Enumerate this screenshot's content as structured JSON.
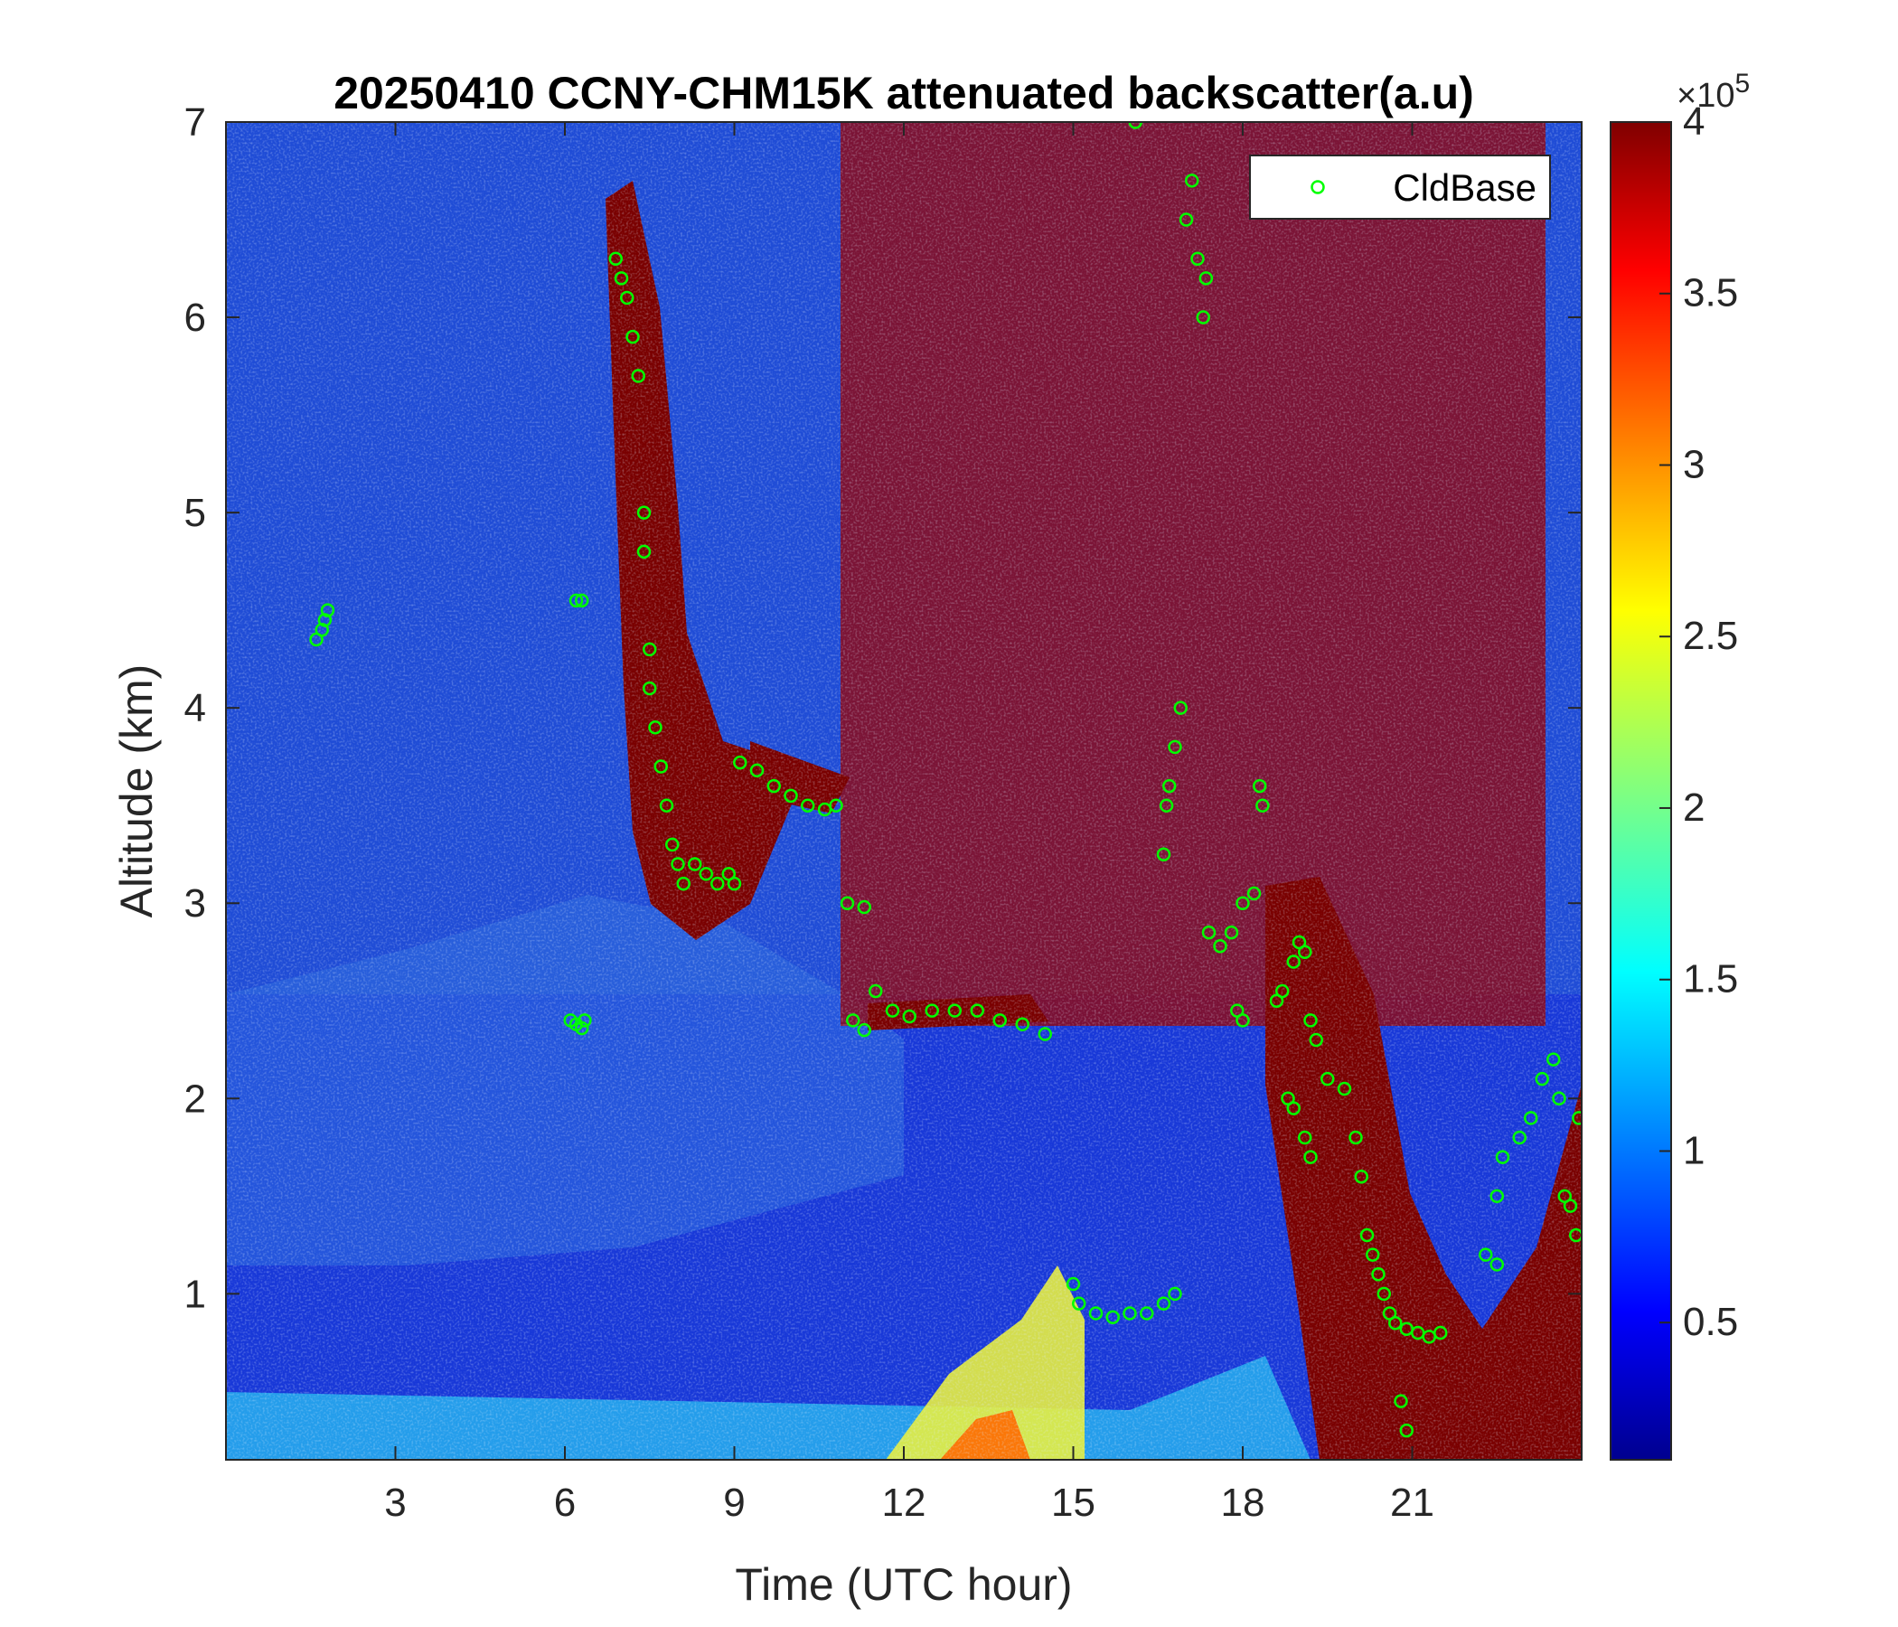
{
  "chart_data": {
    "type": "heatmap",
    "title": "20250410 CCNY-CHM15K attenuated backscatter(a.u)",
    "xlabel": "Time (UTC hour)",
    "ylabel": "Altitude (km)",
    "xlim": [
      0,
      24
    ],
    "ylim": [
      0.15,
      7
    ],
    "x_ticks": [
      3,
      6,
      9,
      12,
      15,
      18,
      21
    ],
    "y_ticks": [
      1,
      2,
      3,
      4,
      5,
      6,
      7
    ],
    "colorbar": {
      "colormap": "jet",
      "range": [
        0.1,
        4
      ],
      "ticks": [
        "0.5",
        "1",
        "1.5",
        "2",
        "2.5",
        "3",
        "3.5",
        "4"
      ],
      "tick_values": [
        0.5,
        1,
        1.5,
        2,
        2.5,
        3,
        3.5,
        4
      ],
      "multiplier_base": "×10",
      "multiplier_exponent": "5"
    },
    "legend": {
      "entries": [
        "CldBase"
      ],
      "placement": "top-right",
      "marker": "circle",
      "marker_color": "#00ff00"
    },
    "series": [
      {
        "name": "CldBase",
        "type": "scatter",
        "points": [
          [
            1.6,
            4.35
          ],
          [
            1.7,
            4.4
          ],
          [
            1.75,
            4.45
          ],
          [
            1.8,
            4.5
          ],
          [
            6.2,
            4.55
          ],
          [
            6.3,
            4.55
          ],
          [
            6.1,
            2.4
          ],
          [
            6.2,
            2.38
          ],
          [
            6.3,
            2.36
          ],
          [
            6.35,
            2.4
          ],
          [
            6.9,
            6.3
          ],
          [
            7.0,
            6.2
          ],
          [
            7.1,
            6.1
          ],
          [
            7.2,
            5.9
          ],
          [
            7.3,
            5.7
          ],
          [
            7.4,
            5.0
          ],
          [
            7.4,
            4.8
          ],
          [
            7.5,
            4.3
          ],
          [
            7.5,
            4.1
          ],
          [
            7.6,
            3.9
          ],
          [
            7.7,
            3.7
          ],
          [
            7.8,
            3.5
          ],
          [
            7.9,
            3.3
          ],
          [
            8.0,
            3.2
          ],
          [
            8.1,
            3.1
          ],
          [
            8.3,
            3.2
          ],
          [
            8.5,
            3.15
          ],
          [
            8.7,
            3.1
          ],
          [
            8.9,
            3.15
          ],
          [
            9.0,
            3.1
          ],
          [
            9.1,
            3.72
          ],
          [
            9.4,
            3.68
          ],
          [
            9.7,
            3.6
          ],
          [
            10.0,
            3.55
          ],
          [
            10.3,
            3.5
          ],
          [
            10.6,
            3.48
          ],
          [
            10.8,
            3.5
          ],
          [
            11.0,
            3.0
          ],
          [
            11.3,
            2.98
          ],
          [
            11.1,
            2.4
          ],
          [
            11.3,
            2.35
          ],
          [
            11.5,
            2.55
          ],
          [
            11.8,
            2.45
          ],
          [
            12.1,
            2.42
          ],
          [
            12.5,
            2.45
          ],
          [
            12.9,
            2.45
          ],
          [
            13.3,
            2.45
          ],
          [
            13.7,
            2.4
          ],
          [
            14.1,
            2.38
          ],
          [
            14.5,
            2.33
          ],
          [
            15.0,
            1.05
          ],
          [
            15.1,
            0.95
          ],
          [
            15.4,
            0.9
          ],
          [
            15.7,
            0.88
          ],
          [
            16.0,
            0.9
          ],
          [
            16.3,
            0.9
          ],
          [
            16.6,
            0.95
          ],
          [
            16.8,
            1.0
          ],
          [
            17.0,
            6.5
          ],
          [
            17.1,
            6.7
          ],
          [
            17.2,
            6.3
          ],
          [
            17.3,
            6.0
          ],
          [
            17.35,
            6.2
          ],
          [
            16.9,
            4.0
          ],
          [
            16.8,
            3.8
          ],
          [
            16.7,
            3.6
          ],
          [
            16.65,
            3.5
          ],
          [
            16.6,
            3.25
          ],
          [
            17.4,
            2.85
          ],
          [
            17.6,
            2.78
          ],
          [
            17.8,
            2.85
          ],
          [
            18.0,
            3.0
          ],
          [
            18.2,
            3.05
          ],
          [
            17.9,
            2.45
          ],
          [
            18.0,
            2.4
          ],
          [
            18.3,
            3.6
          ],
          [
            18.35,
            3.5
          ],
          [
            18.6,
            2.5
          ],
          [
            18.7,
            2.55
          ],
          [
            18.9,
            2.7
          ],
          [
            19.0,
            2.8
          ],
          [
            19.1,
            2.75
          ],
          [
            19.2,
            2.4
          ],
          [
            19.3,
            2.3
          ],
          [
            18.8,
            2.0
          ],
          [
            18.9,
            1.95
          ],
          [
            19.1,
            1.8
          ],
          [
            19.2,
            1.7
          ],
          [
            19.5,
            2.1
          ],
          [
            19.8,
            2.05
          ],
          [
            20.0,
            1.8
          ],
          [
            20.1,
            1.6
          ],
          [
            20.2,
            1.3
          ],
          [
            20.3,
            1.2
          ],
          [
            20.4,
            1.1
          ],
          [
            20.5,
            1.0
          ],
          [
            20.6,
            0.9
          ],
          [
            20.7,
            0.85
          ],
          [
            20.9,
            0.82
          ],
          [
            21.1,
            0.8
          ],
          [
            21.3,
            0.78
          ],
          [
            21.5,
            0.8
          ],
          [
            20.8,
            0.45
          ],
          [
            20.9,
            0.3
          ],
          [
            22.3,
            1.2
          ],
          [
            22.5,
            1.15
          ],
          [
            22.5,
            1.5
          ],
          [
            22.6,
            1.7
          ],
          [
            22.9,
            1.8
          ],
          [
            23.1,
            1.9
          ],
          [
            23.3,
            2.1
          ],
          [
            23.5,
            2.2
          ],
          [
            23.6,
            2.0
          ],
          [
            23.7,
            1.5
          ],
          [
            23.8,
            1.45
          ],
          [
            23.9,
            1.3
          ],
          [
            23.95,
            1.9
          ],
          [
            16.1,
            7.0
          ]
        ]
      }
    ]
  }
}
